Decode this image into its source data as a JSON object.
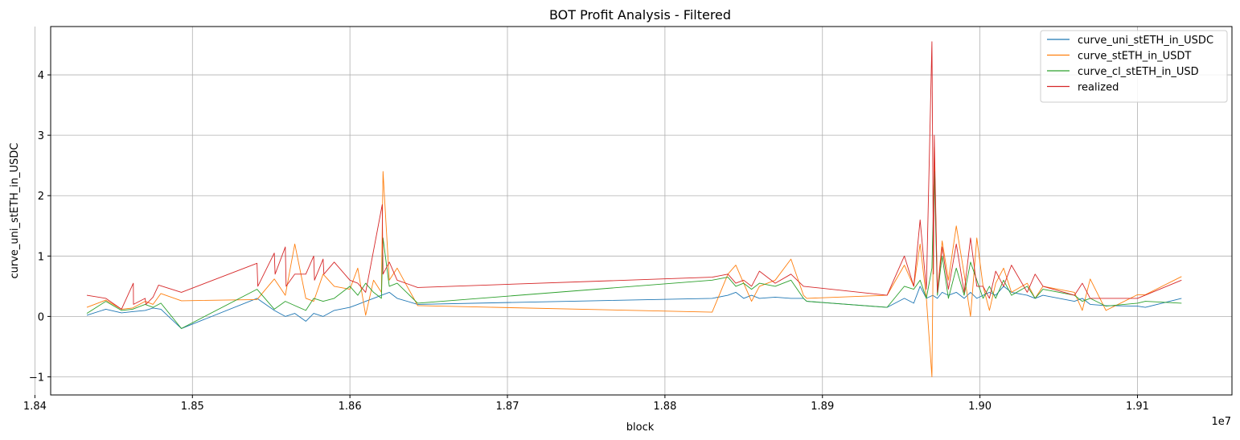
{
  "chart_data": {
    "type": "line",
    "title": "BOT Profit Analysis - Filtered",
    "xlabel": "block",
    "ylabel": "curve_uni_stETH_in_USDC",
    "x_offset_label": "1e7",
    "xlim": [
      18.41,
      19.16
    ],
    "ylim": [
      -1.3,
      4.8
    ],
    "xticks": [
      18.4,
      18.5,
      18.6,
      18.7,
      18.8,
      18.9,
      19.0,
      19.1
    ],
    "xtick_labels": [
      "1.84",
      "1.85",
      "1.86",
      "1.87",
      "1.88",
      "1.89",
      "1.90",
      "1.91"
    ],
    "yticks": [
      -1,
      0,
      1,
      2,
      3,
      4
    ],
    "ytick_labels": [
      "−1",
      "0",
      "1",
      "2",
      "3",
      "4"
    ],
    "grid": true,
    "legend_position": "top-right",
    "series": [
      {
        "name": "curve_uni_stETH_in_USDC",
        "color": "#1f77b4",
        "x": [
          18.433,
          18.445,
          18.455,
          18.462,
          18.47,
          18.475,
          18.48,
          18.493,
          18.541,
          18.552,
          18.559,
          18.565,
          18.572,
          18.577,
          18.583,
          18.59,
          18.6,
          18.605,
          18.61,
          18.615,
          18.62,
          18.625,
          18.63,
          18.643,
          18.83,
          18.84,
          18.845,
          18.85,
          18.855,
          18.86,
          18.87,
          18.88,
          18.888,
          18.89,
          18.941,
          18.952,
          18.958,
          18.962,
          18.966,
          18.97,
          18.973,
          18.976,
          18.98,
          18.985,
          18.99,
          18.994,
          18.998,
          19.002,
          19.006,
          19.01,
          19.015,
          19.02,
          19.03,
          19.035,
          19.04,
          19.06,
          19.065,
          19.07,
          19.08,
          19.1,
          19.105,
          19.128
        ],
        "y": [
          0.02,
          0.12,
          0.06,
          0.08,
          0.1,
          0.14,
          0.12,
          -0.2,
          0.3,
          0.1,
          0.0,
          0.05,
          -0.08,
          0.05,
          0.0,
          0.1,
          0.15,
          0.2,
          0.25,
          0.3,
          0.35,
          0.4,
          0.3,
          0.2,
          0.3,
          0.35,
          0.4,
          0.3,
          0.35,
          0.3,
          0.32,
          0.3,
          0.3,
          0.25,
          0.15,
          0.3,
          0.22,
          0.5,
          0.3,
          0.35,
          0.3,
          0.4,
          0.35,
          0.4,
          0.3,
          0.4,
          0.3,
          0.35,
          0.4,
          0.35,
          0.5,
          0.4,
          0.35,
          0.3,
          0.35,
          0.25,
          0.3,
          0.2,
          0.18,
          0.17,
          0.15,
          0.3
        ]
      },
      {
        "name": "curve_stETH_in_USDT",
        "color": "#ff7f0e",
        "x": [
          18.433,
          18.445,
          18.455,
          18.462,
          18.47,
          18.475,
          18.48,
          18.493,
          18.541,
          18.552,
          18.559,
          18.565,
          18.572,
          18.577,
          18.583,
          18.59,
          18.6,
          18.605,
          18.61,
          18.615,
          18.62,
          18.621,
          18.625,
          18.63,
          18.643,
          18.83,
          18.84,
          18.845,
          18.85,
          18.855,
          18.86,
          18.87,
          18.88,
          18.888,
          18.89,
          18.941,
          18.952,
          18.958,
          18.962,
          18.966,
          18.9695,
          18.971,
          18.973,
          18.976,
          18.98,
          18.985,
          18.99,
          18.994,
          18.998,
          19.002,
          19.006,
          19.01,
          19.015,
          19.02,
          19.03,
          19.035,
          19.04,
          19.06,
          19.065,
          19.07,
          19.08,
          19.1,
          19.105,
          19.128
        ],
        "y": [
          0.15,
          0.27,
          0.12,
          0.14,
          0.25,
          0.2,
          0.38,
          0.26,
          0.28,
          0.62,
          0.35,
          1.2,
          0.3,
          0.25,
          0.7,
          0.5,
          0.45,
          0.8,
          0.02,
          0.6,
          0.4,
          2.4,
          0.6,
          0.8,
          0.18,
          0.07,
          0.7,
          0.85,
          0.55,
          0.25,
          0.5,
          0.6,
          0.95,
          0.35,
          0.3,
          0.35,
          0.85,
          0.5,
          1.2,
          0.3,
          -1.0,
          2.8,
          0.4,
          1.25,
          0.6,
          1.5,
          0.7,
          0.0,
          1.3,
          0.5,
          0.1,
          0.55,
          0.8,
          0.4,
          0.55,
          0.3,
          0.5,
          0.4,
          0.1,
          0.62,
          0.1,
          0.36,
          0.36,
          0.66
        ]
      },
      {
        "name": "curve_cl_stETH_in_USD",
        "color": "#2ca02c",
        "x": [
          18.433,
          18.445,
          18.455,
          18.462,
          18.47,
          18.475,
          18.48,
          18.493,
          18.541,
          18.552,
          18.559,
          18.565,
          18.572,
          18.577,
          18.583,
          18.59,
          18.6,
          18.605,
          18.61,
          18.615,
          18.62,
          18.621,
          18.625,
          18.63,
          18.643,
          18.83,
          18.84,
          18.845,
          18.85,
          18.855,
          18.86,
          18.87,
          18.88,
          18.888,
          18.89,
          18.941,
          18.952,
          18.958,
          18.962,
          18.966,
          18.9695,
          18.971,
          18.973,
          18.976,
          18.98,
          18.985,
          18.99,
          18.994,
          18.998,
          19.002,
          19.006,
          19.01,
          19.015,
          19.02,
          19.03,
          19.035,
          19.04,
          19.06,
          19.065,
          19.07,
          19.08,
          19.1,
          19.105,
          19.128
        ],
        "y": [
          0.05,
          0.25,
          0.1,
          0.12,
          0.2,
          0.15,
          0.22,
          -0.2,
          0.45,
          0.12,
          0.25,
          0.18,
          0.1,
          0.3,
          0.25,
          0.3,
          0.5,
          0.35,
          0.55,
          0.4,
          0.3,
          1.3,
          0.5,
          0.55,
          0.22,
          0.6,
          0.65,
          0.5,
          0.55,
          0.45,
          0.55,
          0.5,
          0.6,
          0.3,
          0.25,
          0.15,
          0.5,
          0.45,
          0.6,
          0.3,
          0.8,
          2.4,
          0.35,
          1.0,
          0.3,
          0.8,
          0.35,
          0.9,
          0.6,
          0.3,
          0.5,
          0.3,
          0.6,
          0.35,
          0.5,
          0.3,
          0.45,
          0.35,
          0.25,
          0.3,
          0.17,
          0.22,
          0.25,
          0.22
        ]
      },
      {
        "name": "realized",
        "color": "#d62728",
        "x": [
          18.433,
          18.445,
          18.455,
          18.4625,
          18.4626,
          18.47,
          18.4705,
          18.475,
          18.4785,
          18.493,
          18.541,
          18.5415,
          18.552,
          18.5525,
          18.559,
          18.5595,
          18.565,
          18.572,
          18.577,
          18.5775,
          18.583,
          18.5835,
          18.59,
          18.6,
          18.605,
          18.61,
          18.6205,
          18.621,
          18.625,
          18.63,
          18.643,
          18.83,
          18.84,
          18.845,
          18.85,
          18.855,
          18.86,
          18.87,
          18.88,
          18.888,
          18.941,
          18.952,
          18.958,
          18.962,
          18.966,
          18.9695,
          18.9705,
          18.971,
          18.973,
          18.976,
          18.98,
          18.985,
          18.99,
          18.994,
          18.998,
          19.002,
          19.006,
          19.01,
          19.015,
          19.02,
          19.03,
          19.035,
          19.04,
          19.06,
          19.065,
          19.07,
          19.08,
          19.1,
          19.128
        ],
        "y": [
          0.35,
          0.3,
          0.12,
          0.55,
          0.2,
          0.3,
          0.2,
          0.32,
          0.52,
          0.4,
          0.88,
          0.5,
          1.05,
          0.7,
          1.15,
          0.5,
          0.7,
          0.7,
          1.0,
          0.6,
          0.95,
          0.7,
          0.9,
          0.6,
          0.55,
          0.4,
          1.85,
          0.7,
          0.9,
          0.6,
          0.48,
          0.65,
          0.7,
          0.55,
          0.6,
          0.5,
          0.75,
          0.55,
          0.7,
          0.5,
          0.35,
          1.0,
          0.5,
          1.6,
          0.45,
          4.55,
          0.7,
          3.0,
          0.4,
          1.15,
          0.45,
          1.2,
          0.4,
          1.3,
          0.5,
          0.5,
          0.3,
          0.75,
          0.5,
          0.85,
          0.4,
          0.7,
          0.5,
          0.35,
          0.55,
          0.3,
          0.3,
          0.3,
          0.6
        ]
      }
    ]
  }
}
